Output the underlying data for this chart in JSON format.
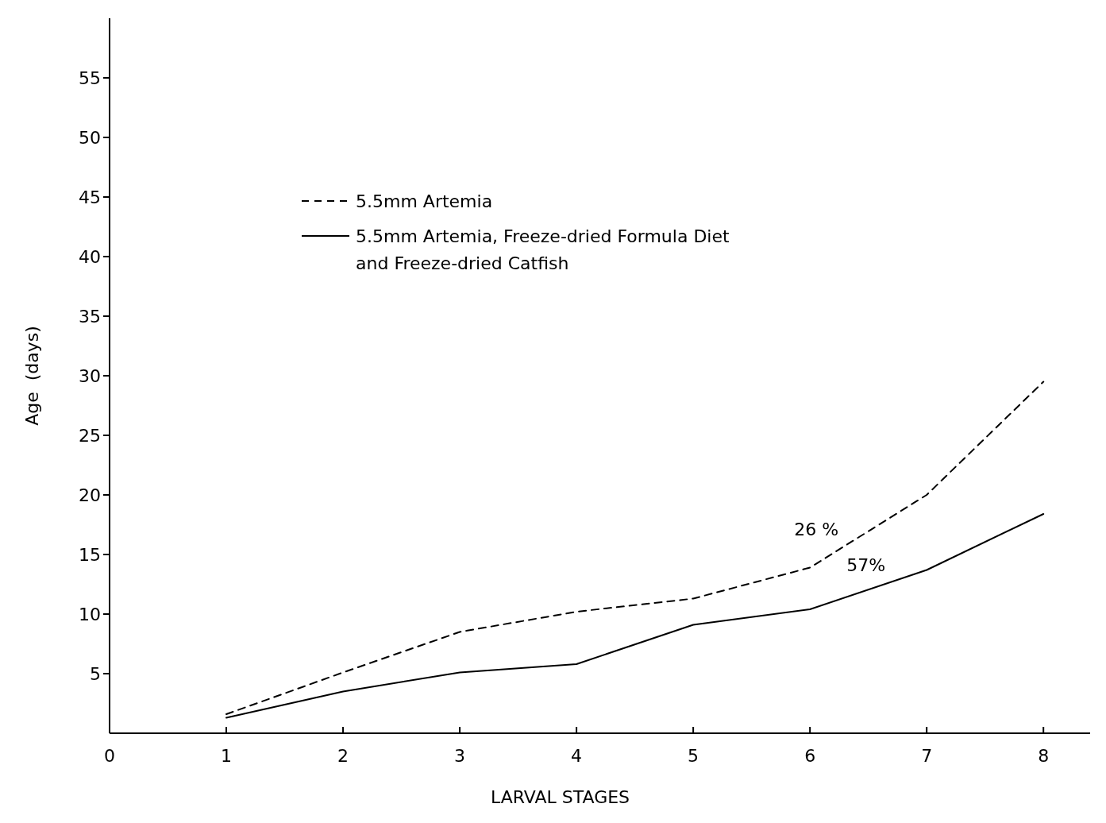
{
  "chart_data": {
    "type": "line",
    "xlabel": "LARVAL STAGES",
    "ylabel": "Age  (days)",
    "x": [
      1,
      2,
      3,
      4,
      5,
      6,
      7,
      8
    ],
    "series": [
      {
        "name": "5.5mm Artemia",
        "color": "#000000",
        "line_style": "dashed",
        "values": [
          1.6,
          5.1,
          8.5,
          10.2,
          11.3,
          13.9,
          20,
          29.5
        ]
      },
      {
        "name": "5.5mm Artemia, Freeze-dried Formula Diet and Freeze-dried Catfish",
        "color": "#000000",
        "line_style": "solid",
        "values": [
          1.3,
          3.5,
          5.1,
          5.8,
          9.1,
          10.4,
          13.7,
          18.4
        ]
      }
    ],
    "xlim": [
      0,
      8.4
    ],
    "xticks": [
      0,
      1,
      2,
      3,
      4,
      5,
      6,
      7,
      8
    ],
    "ylim": [
      0,
      60
    ],
    "yticks": [
      5,
      10,
      15,
      20,
      25,
      30,
      35,
      40,
      45,
      50,
      55
    ],
    "legend": "top left",
    "marker": "none",
    "grid": false,
    "annotations": [
      {
        "text": "26 %",
        "x": 6.3,
        "y": 15.7
      },
      {
        "text": "57%",
        "x": 6.7,
        "y": 12.7
      }
    ]
  }
}
